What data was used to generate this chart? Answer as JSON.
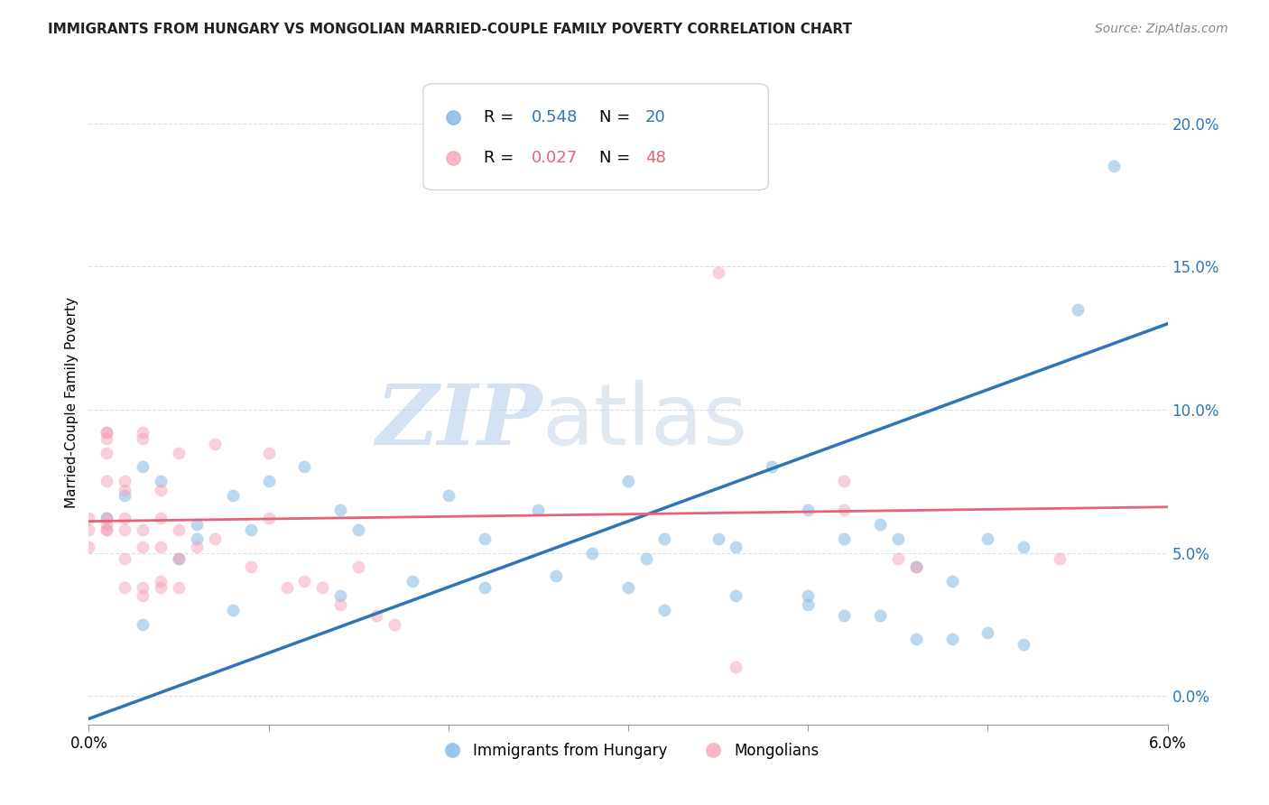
{
  "title": "IMMIGRANTS FROM HUNGARY VS MONGOLIAN MARRIED-COUPLE FAMILY POVERTY CORRELATION CHART",
  "source": "Source: ZipAtlas.com",
  "ylabel_left": "Married-Couple Family Poverty",
  "xlim": [
    0.0,
    0.06
  ],
  "ylim": [
    -0.01,
    0.215
  ],
  "x_ticks": [
    0.0,
    0.01,
    0.02,
    0.03,
    0.04,
    0.05,
    0.06
  ],
  "x_tick_labels": [
    "0.0%",
    "",
    "",
    "",
    "",
    "",
    "6.0%"
  ],
  "y_ticks_right": [
    0.0,
    0.05,
    0.1,
    0.15,
    0.2
  ],
  "y_tick_labels_right": [
    "0.0%",
    "5.0%",
    "10.0%",
    "15.0%",
    "20.0%"
  ],
  "blue_scatter": [
    [
      0.001,
      0.062
    ],
    [
      0.002,
      0.07
    ],
    [
      0.003,
      0.08
    ],
    [
      0.004,
      0.075
    ],
    [
      0.005,
      0.048
    ],
    [
      0.006,
      0.06
    ],
    [
      0.006,
      0.055
    ],
    [
      0.008,
      0.07
    ],
    [
      0.009,
      0.058
    ],
    [
      0.01,
      0.075
    ],
    [
      0.012,
      0.08
    ],
    [
      0.014,
      0.065
    ],
    [
      0.015,
      0.058
    ],
    [
      0.02,
      0.07
    ],
    [
      0.022,
      0.055
    ],
    [
      0.025,
      0.065
    ],
    [
      0.03,
      0.075
    ],
    [
      0.035,
      0.055
    ],
    [
      0.038,
      0.08
    ],
    [
      0.04,
      0.065
    ],
    [
      0.042,
      0.055
    ],
    [
      0.044,
      0.06
    ],
    [
      0.045,
      0.055
    ],
    [
      0.046,
      0.045
    ],
    [
      0.048,
      0.04
    ],
    [
      0.05,
      0.055
    ],
    [
      0.052,
      0.052
    ],
    [
      0.055,
      0.135
    ],
    [
      0.057,
      0.185
    ],
    [
      0.003,
      0.025
    ],
    [
      0.008,
      0.03
    ],
    [
      0.014,
      0.035
    ],
    [
      0.018,
      0.04
    ],
    [
      0.022,
      0.038
    ],
    [
      0.026,
      0.042
    ],
    [
      0.03,
      0.038
    ],
    [
      0.032,
      0.03
    ],
    [
      0.036,
      0.035
    ],
    [
      0.04,
      0.032
    ],
    [
      0.044,
      0.028
    ],
    [
      0.046,
      0.02
    ],
    [
      0.05,
      0.022
    ],
    [
      0.028,
      0.05
    ],
    [
      0.032,
      0.055
    ],
    [
      0.036,
      0.052
    ],
    [
      0.04,
      0.035
    ],
    [
      0.042,
      0.028
    ],
    [
      0.048,
      0.02
    ],
    [
      0.052,
      0.018
    ],
    [
      0.031,
      0.048
    ]
  ],
  "pink_scatter": [
    [
      0.0,
      0.062
    ],
    [
      0.0,
      0.058
    ],
    [
      0.0,
      0.052
    ],
    [
      0.001,
      0.092
    ],
    [
      0.001,
      0.092
    ],
    [
      0.001,
      0.09
    ],
    [
      0.001,
      0.085
    ],
    [
      0.001,
      0.075
    ],
    [
      0.001,
      0.062
    ],
    [
      0.001,
      0.06
    ],
    [
      0.001,
      0.058
    ],
    [
      0.001,
      0.058
    ],
    [
      0.002,
      0.075
    ],
    [
      0.002,
      0.072
    ],
    [
      0.002,
      0.062
    ],
    [
      0.002,
      0.058
    ],
    [
      0.002,
      0.048
    ],
    [
      0.002,
      0.038
    ],
    [
      0.003,
      0.092
    ],
    [
      0.003,
      0.09
    ],
    [
      0.003,
      0.058
    ],
    [
      0.003,
      0.052
    ],
    [
      0.003,
      0.038
    ],
    [
      0.003,
      0.035
    ],
    [
      0.004,
      0.072
    ],
    [
      0.004,
      0.062
    ],
    [
      0.004,
      0.052
    ],
    [
      0.004,
      0.04
    ],
    [
      0.004,
      0.038
    ],
    [
      0.005,
      0.085
    ],
    [
      0.005,
      0.058
    ],
    [
      0.005,
      0.048
    ],
    [
      0.005,
      0.038
    ],
    [
      0.006,
      0.052
    ],
    [
      0.007,
      0.088
    ],
    [
      0.007,
      0.055
    ],
    [
      0.009,
      0.045
    ],
    [
      0.01,
      0.085
    ],
    [
      0.01,
      0.062
    ],
    [
      0.011,
      0.038
    ],
    [
      0.012,
      0.04
    ],
    [
      0.013,
      0.038
    ],
    [
      0.014,
      0.032
    ],
    [
      0.015,
      0.045
    ],
    [
      0.016,
      0.028
    ],
    [
      0.017,
      0.025
    ],
    [
      0.035,
      0.148
    ],
    [
      0.036,
      0.01
    ],
    [
      0.042,
      0.075
    ],
    [
      0.042,
      0.065
    ],
    [
      0.045,
      0.048
    ],
    [
      0.046,
      0.045
    ],
    [
      0.054,
      0.048
    ]
  ],
  "blue_color": "#7ab3e0",
  "pink_color": "#f4a0b5",
  "blue_line_color": "#2e75b6",
  "pink_line_color": "#e8607a",
  "blue_text_color": "#2e75b6",
  "pink_text_color": "#e8607a",
  "watermark_zip": "ZIP",
  "watermark_atlas": "atlas",
  "scatter_size": 100,
  "scatter_alpha": 0.5,
  "grid_color": "#e0e0e0",
  "background_color": "#ffffff",
  "legend_x_label": "Immigrants from Hungary",
  "legend_mongolian_label": "Mongolians"
}
